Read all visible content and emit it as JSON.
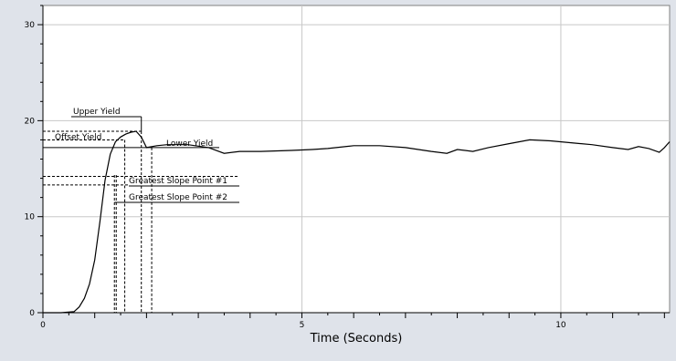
{
  "chart_data": {
    "type": "line",
    "title": "",
    "xlabel": "Time (Seconds)",
    "ylabel": "",
    "xlim": [
      0,
      12.1
    ],
    "ylim": [
      0,
      32
    ],
    "grid": true,
    "x_ticks": [
      0,
      5,
      10
    ],
    "y_ticks": [
      0,
      10,
      20,
      30
    ],
    "colors": {
      "line": "#000000",
      "grid": "#c8c8c8",
      "background": "#ffffff",
      "frame": "#dfe3ea"
    },
    "series": [
      {
        "x": [
          0,
          0.35,
          0.6,
          0.7,
          0.8,
          0.9,
          1.0,
          1.1,
          1.2,
          1.3,
          1.4,
          1.5,
          1.6,
          1.7,
          1.8,
          1.9,
          2.0,
          2.1,
          2.2,
          2.4,
          2.8,
          3.2,
          3.5,
          3.8,
          4.2,
          4.8,
          5.2,
          5.5,
          6.0,
          6.5,
          7.0,
          7.5,
          7.8,
          8.0,
          8.3,
          8.6,
          9.0,
          9.4,
          9.8,
          10.2,
          10.6,
          11.0,
          11.3,
          11.5,
          11.7,
          11.9,
          12.0,
          12.1
        ],
        "y": [
          0,
          0,
          0.1,
          0.6,
          1.5,
          3.0,
          5.5,
          9.5,
          13.8,
          16.5,
          17.8,
          18.3,
          18.6,
          18.8,
          18.9,
          18.3,
          17.2,
          17.3,
          17.4,
          17.5,
          17.5,
          17.2,
          16.6,
          16.8,
          16.8,
          16.9,
          17.0,
          17.1,
          17.4,
          17.4,
          17.2,
          16.8,
          16.6,
          17.0,
          16.8,
          17.2,
          17.6,
          18.0,
          17.9,
          17.7,
          17.5,
          17.2,
          17.0,
          17.3,
          17.1,
          16.7,
          17.2,
          17.8
        ]
      }
    ],
    "annotations": {
      "upper_yield": {
        "label": "Upper Yield",
        "x": 1.9,
        "y": 18.9
      },
      "offset_yield": {
        "label": "Offset Yield",
        "x": 1.58,
        "y": 18.0
      },
      "lower_yield": {
        "label": "Lower Yield",
        "x": 2.1,
        "y": 17.2
      },
      "greatest_slope_1": {
        "label": "Greatest Slope Point #1",
        "x": 1.38,
        "y": 14.2
      },
      "greatest_slope_2": {
        "label": "Greatest Slope Point #2",
        "x": 1.38,
        "y": 13.3
      }
    }
  }
}
